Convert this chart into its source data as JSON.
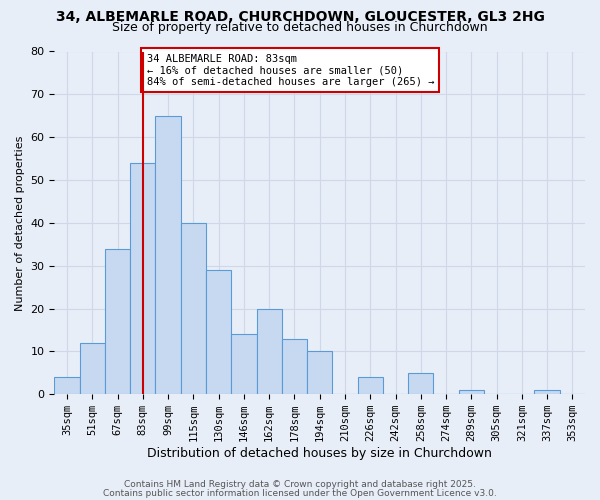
{
  "title1": "34, ALBEMARLE ROAD, CHURCHDOWN, GLOUCESTER, GL3 2HG",
  "title2": "Size of property relative to detached houses in Churchdown",
  "xlabel": "Distribution of detached houses by size in Churchdown",
  "ylabel": "Number of detached properties",
  "bar_labels": [
    "35sqm",
    "51sqm",
    "67sqm",
    "83sqm",
    "99sqm",
    "115sqm",
    "130sqm",
    "146sqm",
    "162sqm",
    "178sqm",
    "194sqm",
    "210sqm",
    "226sqm",
    "242sqm",
    "258sqm",
    "274sqm",
    "289sqm",
    "305sqm",
    "321sqm",
    "337sqm",
    "353sqm"
  ],
  "bar_values": [
    4,
    12,
    34,
    54,
    65,
    40,
    29,
    14,
    20,
    13,
    10,
    0,
    4,
    0,
    5,
    0,
    1,
    0,
    0,
    1,
    0
  ],
  "bar_color": "#c6d9f1",
  "bar_edge_color": "#5b9bd5",
  "annotation_line_x_label": "83sqm",
  "annotation_line_color": "#cc0000",
  "annotation_box_line1": "34 ALBEMARLE ROAD: 83sqm",
  "annotation_box_line2": "← 16% of detached houses are smaller (50)",
  "annotation_box_line3": "84% of semi-detached houses are larger (265) →",
  "annotation_box_color": "#cc0000",
  "annotation_box_bg": "#ffffff",
  "ylim": [
    0,
    80
  ],
  "yticks": [
    0,
    10,
    20,
    30,
    40,
    50,
    60,
    70,
    80
  ],
  "grid_color": "#d0d8e8",
  "bg_color": "#e8eef8",
  "footer1": "Contains HM Land Registry data © Crown copyright and database right 2025.",
  "footer2": "Contains public sector information licensed under the Open Government Licence v3.0.",
  "title_fontsize": 10,
  "subtitle_fontsize": 9,
  "annotation_fontsize": 7.5,
  "footer_fontsize": 6.5,
  "xlabel_fontsize": 9,
  "ylabel_fontsize": 8
}
